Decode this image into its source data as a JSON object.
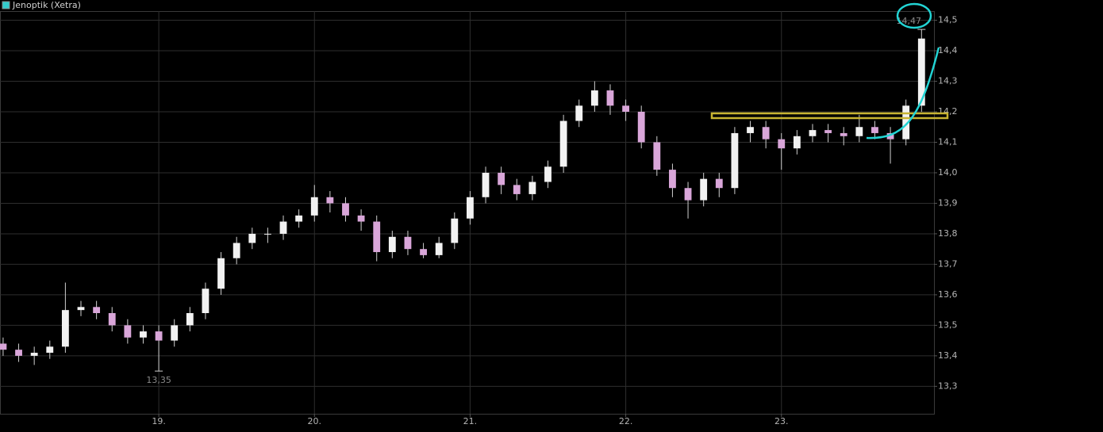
{
  "chart_data": {
    "type": "candlestick",
    "name": "Jenoptik (Xetra)",
    "legend_color": "#33cccc",
    "up_color": "#f2f2f2",
    "down_color": "#d9a6d9",
    "grid": true,
    "xlim": [
      17.98,
      23.98
    ],
    "xticks": [
      {
        "value": 19,
        "label": "19."
      },
      {
        "value": 20,
        "label": "20."
      },
      {
        "value": 21,
        "label": "21."
      },
      {
        "value": 22,
        "label": "22."
      },
      {
        "value": 23,
        "label": "23."
      }
    ],
    "ylim": [
      13.21,
      14.53
    ],
    "yticks": [
      {
        "value": 13.3,
        "label": "13,3"
      },
      {
        "value": 13.4,
        "label": "13,4"
      },
      {
        "value": 13.5,
        "label": "13,5"
      },
      {
        "value": 13.6,
        "label": "13,6"
      },
      {
        "value": 13.7,
        "label": "13,7"
      },
      {
        "value": 13.8,
        "label": "13,8"
      },
      {
        "value": 13.9,
        "label": "13,9"
      },
      {
        "value": 14.0,
        "label": "14,0"
      },
      {
        "value": 14.1,
        "label": "14,1"
      },
      {
        "value": 14.2,
        "label": "14,2"
      },
      {
        "value": 14.3,
        "label": "14,3"
      },
      {
        "value": 14.4,
        "label": "14,4"
      },
      {
        "value": 14.5,
        "label": "14,5"
      }
    ],
    "x": [
      18.0,
      18.1,
      18.2,
      18.3,
      18.4,
      18.5,
      18.6,
      18.7,
      18.8,
      18.9,
      19.0,
      19.1,
      19.2,
      19.3,
      19.4,
      19.5,
      19.6,
      19.7,
      19.8,
      19.9,
      20.0,
      20.1,
      20.2,
      20.3,
      20.4,
      20.5,
      20.6,
      20.7,
      20.8,
      20.9,
      21.0,
      21.1,
      21.2,
      21.3,
      21.4,
      21.5,
      21.6,
      21.7,
      21.8,
      21.9,
      22.0,
      22.1,
      22.2,
      22.3,
      22.4,
      22.5,
      22.6,
      22.7,
      22.8,
      22.9,
      23.0,
      23.1,
      23.2,
      23.3,
      23.4,
      23.5,
      23.6,
      23.7,
      23.8,
      23.9
    ],
    "open": [
      13.44,
      13.42,
      13.4,
      13.41,
      13.43,
      13.55,
      13.56,
      13.54,
      13.5,
      13.46,
      13.48,
      13.45,
      13.5,
      13.54,
      13.62,
      13.72,
      13.77,
      13.8,
      13.8,
      13.84,
      13.86,
      13.92,
      13.9,
      13.86,
      13.84,
      13.74,
      13.79,
      13.75,
      13.73,
      13.77,
      13.85,
      13.92,
      14.0,
      13.96,
      13.93,
      13.97,
      14.02,
      14.17,
      14.22,
      14.27,
      14.22,
      14.2,
      14.1,
      14.01,
      13.95,
      13.91,
      13.98,
      13.95,
      14.13,
      14.15,
      14.11,
      14.08,
      14.12,
      14.14,
      14.13,
      14.12,
      14.15,
      14.13,
      14.11,
      14.22
    ],
    "high": [
      13.46,
      13.44,
      13.43,
      13.45,
      13.64,
      13.58,
      13.58,
      13.56,
      13.52,
      13.5,
      13.5,
      13.52,
      13.56,
      13.64,
      13.74,
      13.79,
      13.82,
      13.82,
      13.86,
      13.88,
      13.96,
      13.94,
      13.92,
      13.88,
      13.86,
      13.81,
      13.81,
      13.77,
      13.79,
      13.87,
      13.94,
      14.02,
      14.02,
      13.98,
      13.99,
      14.04,
      14.19,
      14.24,
      14.3,
      14.29,
      14.24,
      14.22,
      14.12,
      14.03,
      13.97,
      14.0,
      14.0,
      14.15,
      14.17,
      14.17,
      14.13,
      14.14,
      14.16,
      14.16,
      14.15,
      14.19,
      14.17,
      14.15,
      14.24,
      14.47
    ],
    "low": [
      13.4,
      13.38,
      13.37,
      13.39,
      13.41,
      13.53,
      13.52,
      13.48,
      13.44,
      13.44,
      13.35,
      13.43,
      13.48,
      13.52,
      13.6,
      13.7,
      13.75,
      13.77,
      13.78,
      13.82,
      13.84,
      13.87,
      13.84,
      13.81,
      13.71,
      13.72,
      13.73,
      13.72,
      13.72,
      13.75,
      13.83,
      13.9,
      13.93,
      13.91,
      13.91,
      13.95,
      14.0,
      14.15,
      14.2,
      14.19,
      14.17,
      14.08,
      13.99,
      13.92,
      13.85,
      13.89,
      13.92,
      13.93,
      14.1,
      14.08,
      14.01,
      14.06,
      14.1,
      14.1,
      14.09,
      14.1,
      14.11,
      14.03,
      14.09,
      14.2
    ],
    "close": [
      13.42,
      13.4,
      13.41,
      13.43,
      13.55,
      13.56,
      13.54,
      13.5,
      13.46,
      13.48,
      13.45,
      13.5,
      13.54,
      13.62,
      13.72,
      13.77,
      13.8,
      13.8,
      13.84,
      13.86,
      13.92,
      13.9,
      13.86,
      13.84,
      13.74,
      13.79,
      13.75,
      13.73,
      13.77,
      13.85,
      13.92,
      14.0,
      13.96,
      13.93,
      13.97,
      14.02,
      14.17,
      14.22,
      14.27,
      14.22,
      14.2,
      14.1,
      14.01,
      13.95,
      13.91,
      13.98,
      13.95,
      14.13,
      14.15,
      14.11,
      14.08,
      14.12,
      14.14,
      14.13,
      14.12,
      14.15,
      14.13,
      14.11,
      14.22,
      14.44
    ],
    "annotations": [
      {
        "x": 23.9,
        "value": 14.47,
        "label": "14,47"
      },
      {
        "x": 19.0,
        "value": 13.35,
        "label": "13,35"
      }
    ]
  }
}
